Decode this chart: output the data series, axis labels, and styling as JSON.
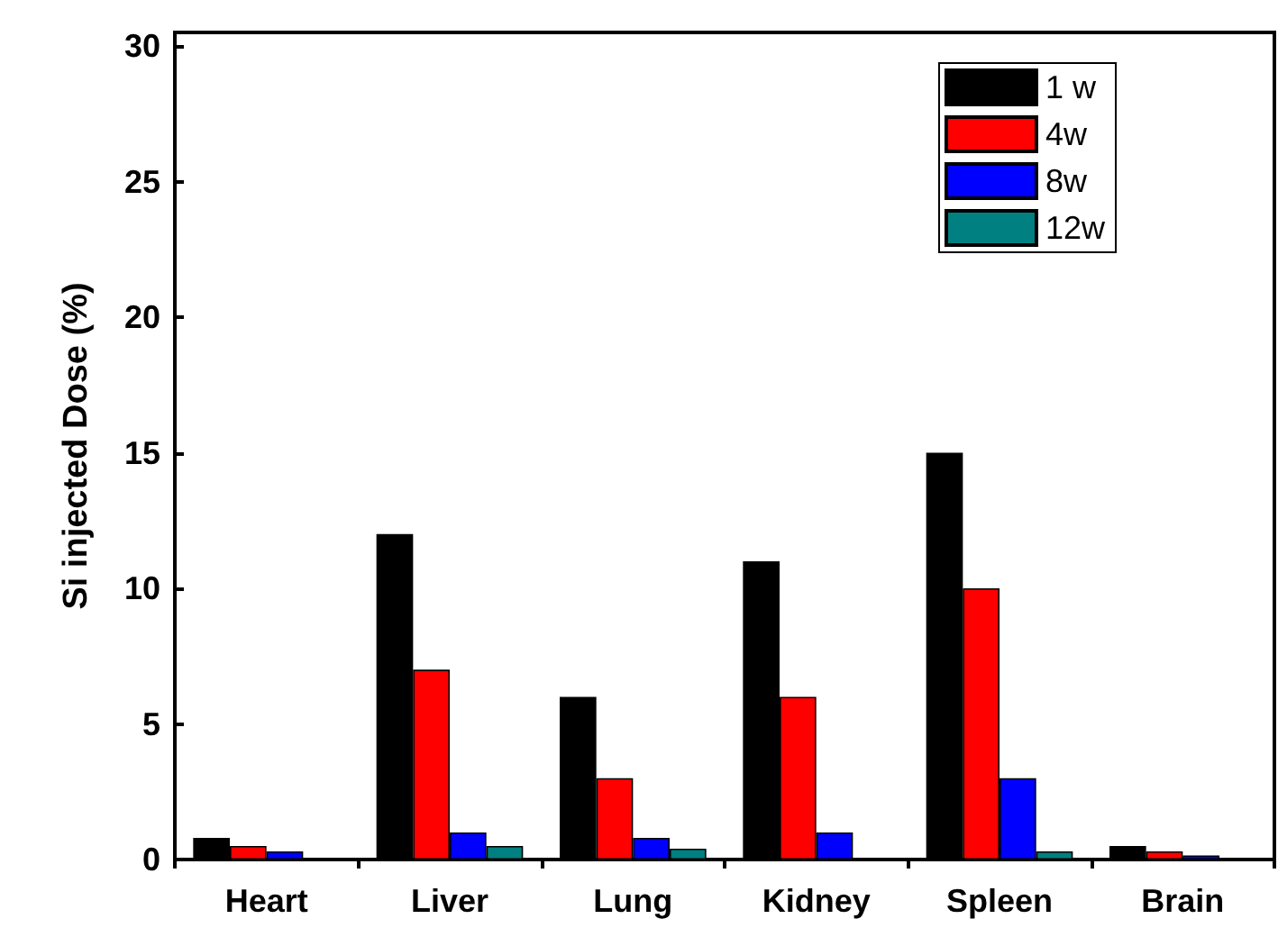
{
  "chart_data": {
    "type": "bar",
    "ylabel": "Si injected Dose (%)",
    "categories": [
      "Heart",
      "Liver",
      "Lung",
      "Kidney",
      "Spleen",
      "Brain"
    ],
    "series": [
      {
        "name": "1 w",
        "color": "#000000",
        "values": [
          0.8,
          12,
          6,
          11,
          15,
          0.5
        ]
      },
      {
        "name": "4w",
        "color": "#ff0000",
        "values": [
          0.5,
          7,
          3,
          6,
          10,
          0.3
        ]
      },
      {
        "name": "8w",
        "color": "#0000ff",
        "values": [
          0.3,
          1,
          0.8,
          1,
          3,
          0.15
        ]
      },
      {
        "name": "12w",
        "color": "#008080",
        "values": [
          null,
          0.5,
          0.4,
          null,
          0.3,
          null
        ]
      }
    ],
    "ylim": [
      0,
      30.5
    ],
    "yticks": [
      0,
      5,
      10,
      15,
      20,
      25,
      30
    ],
    "grid": false,
    "legend": "top right"
  }
}
